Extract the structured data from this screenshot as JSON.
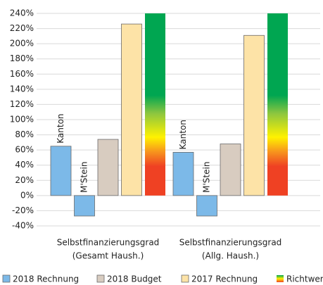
{
  "chart_data": {
    "type": "bar",
    "categories": [
      [
        "Selbstfinanzierungsgrad",
        "(Gesamt Haush.)"
      ],
      [
        "Selbstfinanzierungsgrad",
        "(Allg. Haush.)"
      ]
    ],
    "series": [
      {
        "label": "Kanton",
        "color": "#7cb9e8",
        "values": [
          65,
          57
        ]
      },
      {
        "label": "M'Stein",
        "color": "#7cb9e8",
        "values": [
          -27,
          -27
        ]
      },
      {
        "color": "#d8ccc0",
        "values": [
          74,
          68
        ]
      },
      {
        "color": "#fde3a7",
        "values": [
          226,
          211
        ]
      },
      {
        "gradient": [
          "#00a651",
          "#8dc63f",
          "#fff200",
          "#f7941d",
          "#ef4123"
        ],
        "values": [
          240,
          240
        ]
      }
    ],
    "legend": [
      {
        "name": "2018 Rechnung",
        "color": "#7cb9e8"
      },
      {
        "name": "2018 Budget",
        "color": "#d8ccc0"
      },
      {
        "name": "2017 Rechnung",
        "color": "#fde3a7"
      },
      {
        "name": "Richtwert",
        "gradient": [
          "#00a651",
          "#fff200",
          "#ef4123"
        ]
      }
    ],
    "ylim": [
      -40,
      240
    ],
    "yticks": [
      {
        "value": 240,
        "label": "240%"
      },
      {
        "value": 220,
        "label": "220%"
      },
      {
        "value": 200,
        "label": "200%"
      },
      {
        "value": 180,
        "label": "180%"
      },
      {
        "value": 160,
        "label": "160%"
      },
      {
        "value": 140,
        "label": "140%"
      },
      {
        "value": 120,
        "label": "120%"
      },
      {
        "value": 100,
        "label": "100%"
      },
      {
        "value": 80,
        "label": "80%"
      },
      {
        "value": 60,
        "label": "60%"
      },
      {
        "value": 40,
        "label": "40%"
      },
      {
        "value": 20,
        "label": "20%"
      },
      {
        "value": 0,
        "label": "0%"
      },
      {
        "value": -20,
        "label": "-20%"
      },
      {
        "value": -40,
        "label": "-40%"
      }
    ],
    "grid": true
  }
}
